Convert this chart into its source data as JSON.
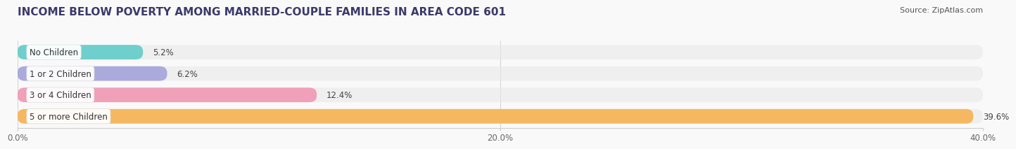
{
  "title": "INCOME BELOW POVERTY AMONG MARRIED-COUPLE FAMILIES IN AREA CODE 601",
  "source": "Source: ZipAtlas.com",
  "categories": [
    "No Children",
    "1 or 2 Children",
    "3 or 4 Children",
    "5 or more Children"
  ],
  "values": [
    5.2,
    6.2,
    12.4,
    39.6
  ],
  "bar_colors": [
    "#6ecfcc",
    "#aaaadd",
    "#f0a0b8",
    "#f5b860"
  ],
  "bar_bg_color": "#e8e8e8",
  "xlim": [
    0,
    40
  ],
  "xticks": [
    0.0,
    20.0,
    40.0
  ],
  "xtick_labels": [
    "0.0%",
    "20.0%",
    "40.0%"
  ],
  "value_label_fontsize": 8.5,
  "category_label_fontsize": 8.5,
  "title_fontsize": 11,
  "source_fontsize": 8,
  "bar_height": 0.68,
  "background_color": "#f9f9f9",
  "title_color": "#3a3a6a",
  "source_color": "#555555"
}
